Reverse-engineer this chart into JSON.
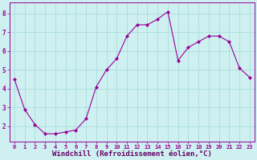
{
  "x": [
    0,
    1,
    2,
    3,
    4,
    5,
    6,
    7,
    8,
    9,
    10,
    11,
    12,
    13,
    14,
    15,
    16,
    17,
    18,
    19,
    20,
    21,
    22,
    23
  ],
  "y": [
    4.5,
    2.9,
    2.1,
    1.6,
    1.6,
    1.7,
    1.8,
    2.4,
    4.1,
    5.0,
    5.6,
    6.8,
    7.4,
    7.4,
    7.7,
    8.1,
    5.5,
    6.2,
    6.5,
    6.8,
    6.8,
    6.5,
    5.1,
    4.6
  ],
  "line_color": "#990099",
  "marker": "D",
  "marker_size": 2.0,
  "bg_color": "#cef0f0",
  "grid_color": "#aadddd",
  "xlabel": "Windchill (Refroidissement éolien,°C)",
  "xlabel_color": "#660066",
  "xlim": [
    -0.5,
    23.5
  ],
  "ylim": [
    1.2,
    8.6
  ],
  "yticks": [
    2,
    3,
    4,
    5,
    6,
    7,
    8
  ],
  "xtick_labels": [
    "0",
    "1",
    "2",
    "3",
    "4",
    "5",
    "6",
    "7",
    "8",
    "9",
    "10",
    "11",
    "12",
    "13",
    "14",
    "15",
    "16",
    "17",
    "18",
    "19",
    "20",
    "21",
    "22",
    "23"
  ],
  "tick_color": "#990099",
  "tick_fontsize": 5.0,
  "ytick_fontsize": 5.5,
  "xlabel_fontsize": 6.5,
  "xlabel_fontweight": "bold",
  "spine_color": "#990099",
  "linewidth": 0.8
}
